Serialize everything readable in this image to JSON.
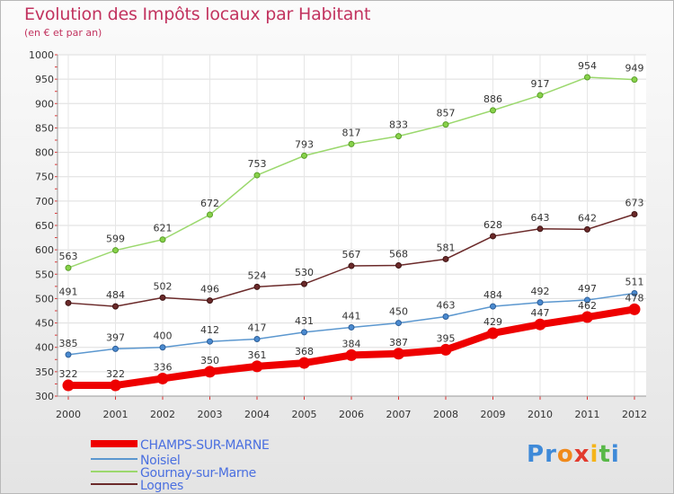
{
  "header": {
    "title": "Evolution des Impôts locaux par Habitant",
    "subtitle": "(en € et par an)"
  },
  "logo": {
    "text": "Proxiti"
  },
  "colors": {
    "CHAMPS-SUR-MARNE": "#ee0000",
    "Noisiel": "#5b97cf",
    "Gournay-sur-Marne": "#9bd86d",
    "Lognes": "#6b2a2a"
  },
  "chart_data": {
    "type": "line",
    "title": "Evolution des Impôts locaux par Habitant",
    "subtitle": "(en € et par an)",
    "xlabel": "",
    "ylabel": "",
    "ylim": [
      300,
      1000
    ],
    "y_ticks": [
      300,
      350,
      400,
      450,
      500,
      550,
      600,
      650,
      700,
      750,
      800,
      850,
      900,
      950,
      1000
    ],
    "grid": true,
    "legend_position": "bottom-left",
    "x": [
      "2000",
      "2001",
      "2002",
      "2003",
      "2004",
      "2005",
      "2006",
      "2007",
      "2008",
      "2009",
      "2010",
      "2011",
      "2012"
    ],
    "series": [
      {
        "name": "CHAMPS-SUR-MARNE",
        "values": [
          322,
          322,
          336,
          350,
          361,
          368,
          384,
          387,
          395,
          429,
          447,
          462,
          478
        ]
      },
      {
        "name": "Noisiel",
        "values": [
          385,
          397,
          400,
          412,
          417,
          431,
          441,
          450,
          463,
          484,
          492,
          497,
          511
        ]
      },
      {
        "name": "Gournay-sur-Marne",
        "values": [
          563,
          599,
          621,
          672,
          753,
          793,
          817,
          833,
          857,
          886,
          917,
          954,
          949
        ]
      },
      {
        "name": "Lognes",
        "values": [
          491,
          484,
          502,
          496,
          524,
          530,
          567,
          568,
          581,
          628,
          643,
          642,
          673
        ]
      }
    ]
  }
}
